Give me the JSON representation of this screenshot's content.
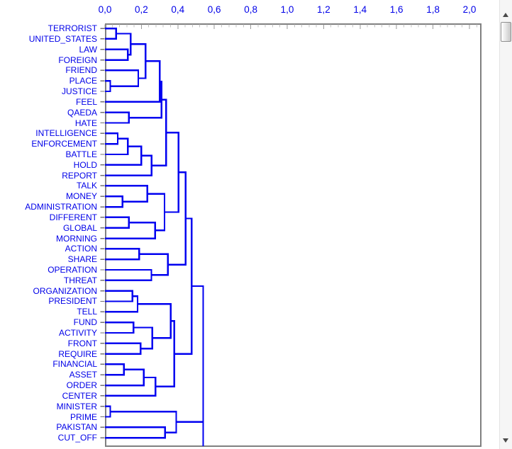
{
  "window": {
    "background": "#ffffff"
  },
  "chart_data": {
    "type": "dendrogram",
    "orientation": "leaves-left-root-right",
    "title": "",
    "axis": {
      "position": "top",
      "tick_labels": [
        "0,0",
        "0,2",
        "0,4",
        "0,6",
        "0,8",
        "1,0",
        "1,2",
        "1,4",
        "1,6",
        "1,8",
        "2,0"
      ],
      "min": 0,
      "max": 2,
      "major_step": 0.2,
      "minor_step": 0.04
    },
    "leaves": [
      "TERRORIST",
      "UNITED_STATES",
      "LAW",
      "FOREIGN",
      "FRIEND",
      "PLACE",
      "JUSTICE",
      "FEEL",
      "QAEDA",
      "HATE",
      "INTELLIGENCE",
      "ENFORCEMENT",
      "BATTLE",
      "HOLD",
      "REPORT",
      "TALK",
      "MONEY",
      "ADMINISTRATION",
      "DIFFERENT",
      "GLOBAL",
      "MORNING",
      "ACTION",
      "SHARE",
      "OPERATION",
      "THREAT",
      "ORGANIZATION",
      "PRESIDENT",
      "TELL",
      "FUND",
      "ACTIVITY",
      "FRONT",
      "REQUIRE",
      "FINANCIAL",
      "ASSET",
      "ORDER",
      "CENTER",
      "MINISTER",
      "PRIME",
      "PAKISTAN",
      "CUT_OFF"
    ],
    "merges_format": "[childA, childB, distance] ; child < 40 = leaf index, child >= 40 = merge node (40 + merge row index)",
    "merges": [
      [
        0,
        1,
        0.061
      ],
      [
        2,
        3,
        0.126
      ],
      [
        40,
        41,
        0.141
      ],
      [
        5,
        6,
        0.029
      ],
      [
        4,
        43,
        0.183
      ],
      [
        42,
        44,
        0.222
      ],
      [
        45,
        7,
        0.3
      ],
      [
        8,
        9,
        0.132
      ],
      [
        46,
        47,
        0.311
      ],
      [
        10,
        11,
        0.07
      ],
      [
        49,
        12,
        0.126
      ],
      [
        50,
        13,
        0.2
      ],
      [
        51,
        14,
        0.256
      ],
      [
        48,
        52,
        0.335
      ],
      [
        16,
        17,
        0.097
      ],
      [
        15,
        54,
        0.232
      ],
      [
        18,
        19,
        0.132
      ],
      [
        56,
        20,
        0.275
      ],
      [
        55,
        57,
        0.327
      ],
      [
        53,
        58,
        0.403
      ],
      [
        21,
        22,
        0.187
      ],
      [
        23,
        24,
        0.255
      ],
      [
        60,
        61,
        0.346
      ],
      [
        59,
        62,
        0.442
      ],
      [
        25,
        26,
        0.15
      ],
      [
        64,
        27,
        0.179
      ],
      [
        28,
        29,
        0.157
      ],
      [
        30,
        31,
        0.196
      ],
      [
        66,
        67,
        0.26
      ],
      [
        65,
        68,
        0.361
      ],
      [
        32,
        33,
        0.104
      ],
      [
        70,
        34,
        0.213
      ],
      [
        71,
        35,
        0.277
      ],
      [
        69,
        72,
        0.38
      ],
      [
        63,
        73,
        0.475
      ],
      [
        36,
        37,
        0.029
      ],
      [
        38,
        39,
        0.33
      ],
      [
        75,
        76,
        0.391
      ],
      [
        74,
        77,
        0.539
      ]
    ],
    "colors": {
      "line": "#0000f0",
      "label_text": "#0000e8",
      "axis_text": "#0000e8",
      "plot_border": "#808080",
      "tick_major": "#9a9a9a",
      "tick_minor": "#c2c2c2",
      "row_tick": "#707070"
    }
  },
  "scrollbar": {
    "orientation": "vertical",
    "up_arrow": "triangle-up",
    "down_arrow": "triangle-down",
    "thumb_position": "near-top"
  }
}
